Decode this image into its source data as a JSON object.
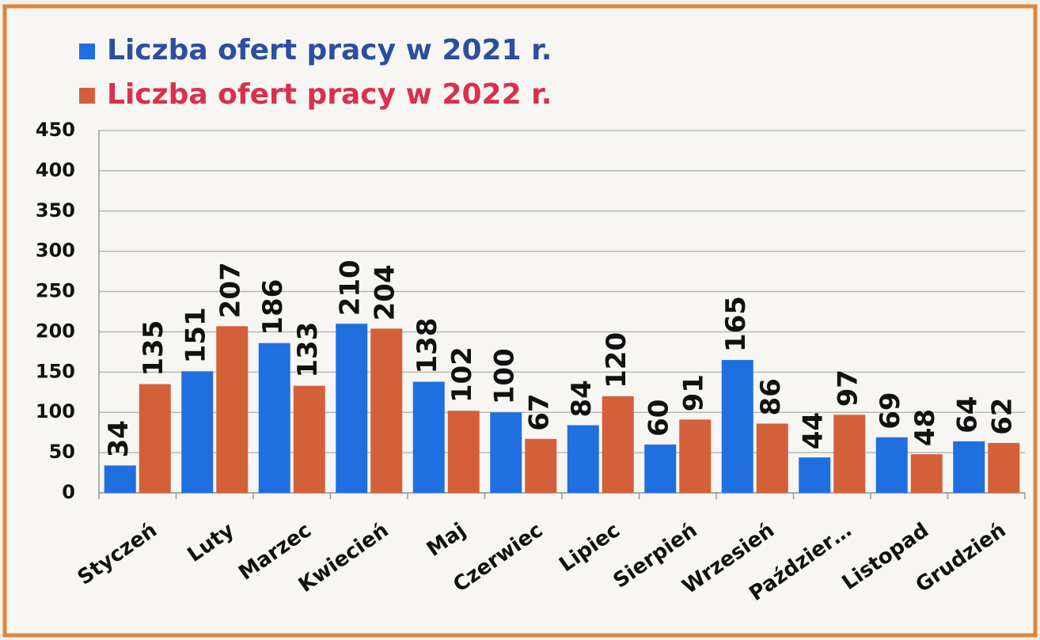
{
  "chart_data": {
    "type": "bar",
    "categories": [
      "Styczeń",
      "Luty",
      "Marzec",
      "Kwiecień",
      "Maj",
      "Czerwiec",
      "Lipiec",
      "Sierpień",
      "Wrzesień",
      "Paździer…",
      "Listopad",
      "Grudzień"
    ],
    "series": [
      {
        "name": "Liczba ofert pracy w 2021 r.",
        "color": "#1f6fe0",
        "values": [
          34,
          151,
          186,
          210,
          138,
          100,
          84,
          60,
          165,
          44,
          69,
          64
        ]
      },
      {
        "name": "Liczba ofert pracy w 2022 r.",
        "color": "#d4603a",
        "values": [
          135,
          207,
          133,
          204,
          102,
          67,
          120,
          91,
          86,
          97,
          48,
          62
        ]
      }
    ],
    "ylim": [
      0,
      450
    ],
    "yticks": [
      0,
      50,
      100,
      150,
      200,
      250,
      300,
      350,
      400,
      450
    ],
    "grid": true
  }
}
